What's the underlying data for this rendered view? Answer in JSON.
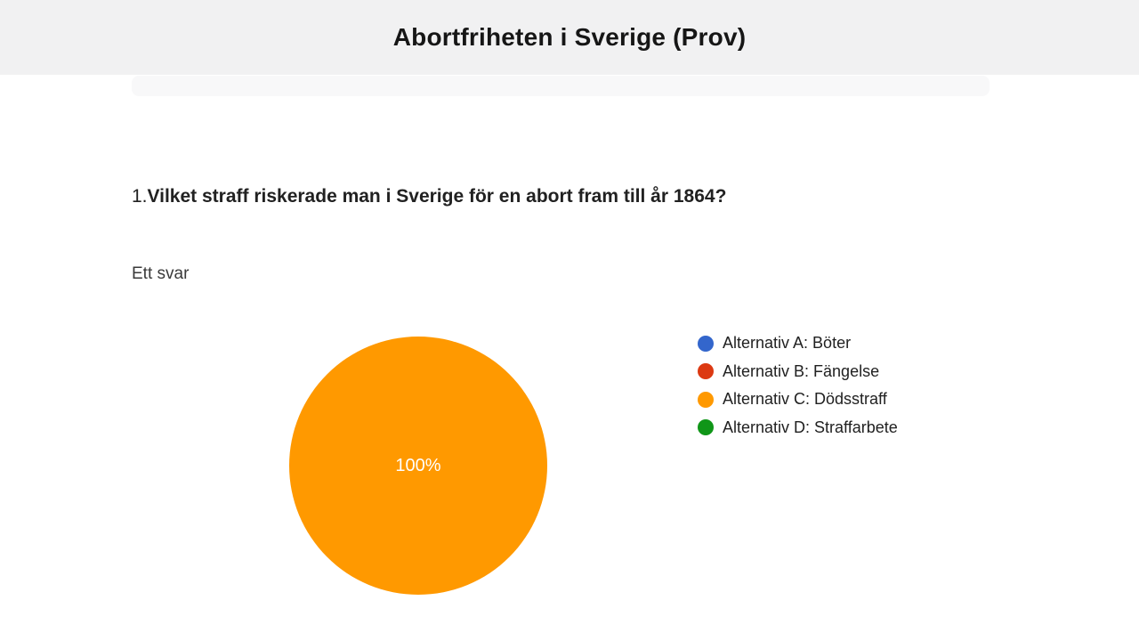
{
  "header": {
    "title": "Abortfriheten i Sverige (Prov)",
    "background": "#f1f1f2"
  },
  "question": {
    "number": "1.",
    "text": "Vilket straff riskerade man i Sverige för en abort fram till år 1864?",
    "answers_count_label": "Ett svar"
  },
  "chart_data": {
    "type": "pie",
    "title": "",
    "labels": [
      "Alternativ A: Böter",
      "Alternativ B: Fängelse",
      "Alternativ C: Dödsstraff",
      "Alternativ D: Straffarbete"
    ],
    "values": [
      0,
      0,
      100,
      0
    ],
    "unit": "%",
    "colors": [
      "#3366CC",
      "#DC3912",
      "#FF9900",
      "#109618"
    ],
    "visible_slice_label": "100%",
    "visible_slice_color": "#FF9900",
    "legend_position": "right"
  },
  "pie": {
    "label": "100%",
    "color": "#FF9900"
  },
  "legend": {
    "items": [
      {
        "label": "Alternativ A: Böter",
        "color": "#3366CC"
      },
      {
        "label": "Alternativ B: Fängelse",
        "color": "#DC3912"
      },
      {
        "label": "Alternativ C: Dödsstraff",
        "color": "#FF9900"
      },
      {
        "label": "Alternativ D: Straffarbete",
        "color": "#109618"
      }
    ]
  }
}
